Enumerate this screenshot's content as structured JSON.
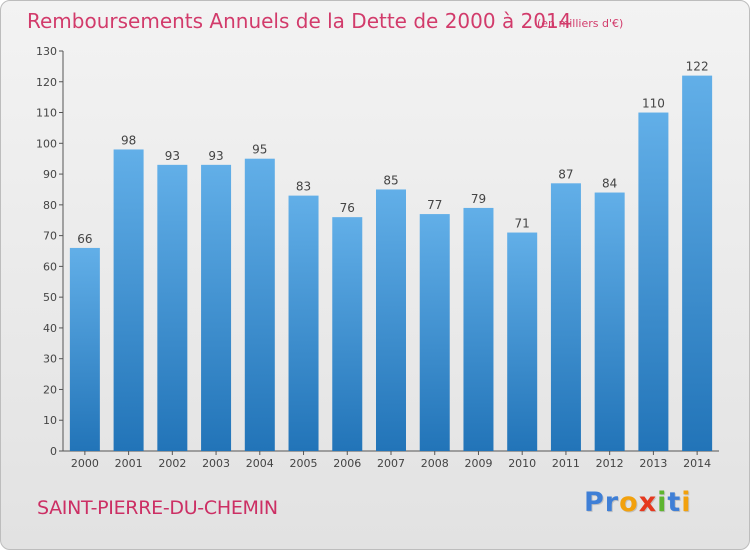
{
  "header": {
    "title": "Remboursements Annuels de la Dette de 2000 à 2014",
    "subtitle": "(en milliers d'€)"
  },
  "footer": {
    "commune": "SAINT-PIERRE-DU-CHEMIN",
    "logo_letters": [
      "P",
      "r",
      "o",
      "x",
      "i",
      "t",
      "i"
    ],
    "logo_colors": [
      "#3f7fd6",
      "#3f7fd6",
      "#f2a10d",
      "#e5391f",
      "#5fb52f",
      "#3f7fd6",
      "#f2a10d"
    ]
  },
  "colors": {
    "bar_light": "#62afe8",
    "bar_dark": "#2274b8",
    "label": "#444444",
    "axis": "#555555"
  },
  "chart_data": {
    "type": "bar",
    "title": "Remboursements Annuels de la Dette de 2000 à 2014",
    "xlabel": "",
    "ylabel": "",
    "categories": [
      "2000",
      "2001",
      "2002",
      "2003",
      "2004",
      "2005",
      "2006",
      "2007",
      "2008",
      "2009",
      "2010",
      "2011",
      "2012",
      "2013",
      "2014"
    ],
    "values": [
      66,
      98,
      93,
      93,
      95,
      83,
      76,
      85,
      77,
      79,
      71,
      87,
      84,
      110,
      122
    ],
    "ylim": [
      0,
      130
    ],
    "yticks": [
      0,
      10,
      20,
      30,
      40,
      50,
      60,
      70,
      80,
      90,
      100,
      110,
      120,
      130
    ],
    "grid": false,
    "legend": "none"
  }
}
